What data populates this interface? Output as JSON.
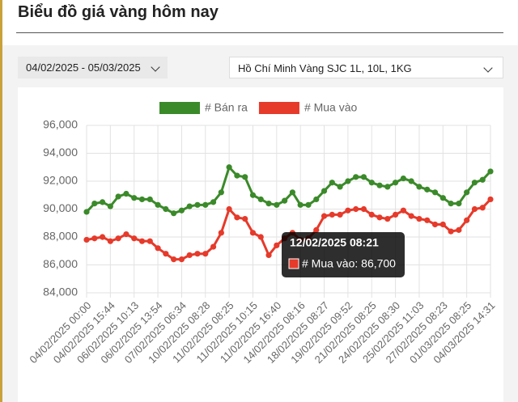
{
  "header": {
    "title": "Biểu đồ giá vàng hôm nay"
  },
  "filters": {
    "date_range": "04/02/2025 - 05/03/2025",
    "product": "Hồ Chí Minh Vàng SJC 1L, 10L, 1KG"
  },
  "chart_data": {
    "type": "line",
    "categories": [
      "04/02/2025 00:00",
      null,
      null,
      "04/02/2025 15:44",
      null,
      null,
      "06/02/2025 10:13",
      null,
      null,
      "06/02/2025 13:54",
      null,
      null,
      "07/02/2025 06:34",
      null,
      null,
      "10/02/2025 08:28",
      null,
      null,
      "11/02/2025 08:25",
      null,
      null,
      "11/02/2025 10:15",
      null,
      null,
      "11/02/2025 16:40",
      null,
      null,
      "14/02/2025 08:16",
      null,
      null,
      "18/02/2025 08:27",
      null,
      null,
      "19/02/2025 09:52",
      null,
      null,
      "21/02/2025 08:25",
      null,
      null,
      "24/02/2025 08:30",
      null,
      null,
      "25/02/2025 11:03",
      null,
      null,
      "27/02/2025 08:23",
      null,
      null,
      "01/03/2025 08:25",
      null,
      null,
      "04/03/2025 14:31"
    ],
    "series": [
      {
        "name": "# Bán ra",
        "color": "#3b8a2a",
        "values": [
          89800,
          90400,
          90500,
          90200,
          90900,
          91100,
          90800,
          90700,
          90700,
          90300,
          90000,
          89700,
          89900,
          90200,
          90300,
          90300,
          90500,
          91200,
          93000,
          92400,
          92300,
          91000,
          90700,
          90400,
          90300,
          90600,
          91200,
          90300,
          90300,
          90700,
          91300,
          91900,
          91600,
          92000,
          92300,
          92300,
          91900,
          91700,
          91600,
          91900,
          92200,
          92000,
          91600,
          91400,
          91200,
          90800,
          90400,
          90400,
          91200,
          91900,
          92100,
          92700
        ]
      },
      {
        "name": "# Mua vào",
        "color": "#e63a2b",
        "values": [
          87800,
          87900,
          88000,
          87700,
          87900,
          88200,
          87900,
          87700,
          87700,
          87200,
          86800,
          86400,
          86400,
          86700,
          86800,
          86800,
          87300,
          88300,
          90000,
          89400,
          89300,
          88300,
          88000,
          86700,
          87400,
          87900,
          88300,
          87800,
          87900,
          88500,
          89500,
          89600,
          89600,
          89900,
          90000,
          90000,
          89600,
          89400,
          89300,
          89600,
          89900,
          89500,
          89300,
          89200,
          88900,
          88900,
          88400,
          88500,
          89200,
          90000,
          90100,
          90700
        ]
      }
    ],
    "ylim": [
      84000,
      96000
    ],
    "yticks": [
      {
        "value": 84000,
        "label": "84,000"
      },
      {
        "value": 86000,
        "label": "86,000"
      },
      {
        "value": 88000,
        "label": "88,000"
      },
      {
        "value": 90000,
        "label": "90,000"
      },
      {
        "value": 92000,
        "label": "92,000"
      },
      {
        "value": 94000,
        "label": "94,000"
      },
      {
        "value": 96000,
        "label": "96,000"
      }
    ],
    "grid": true,
    "legend": "top",
    "tooltip": {
      "title": "12/02/2025 08:21",
      "label": "# Mua vào: 86,700"
    }
  }
}
